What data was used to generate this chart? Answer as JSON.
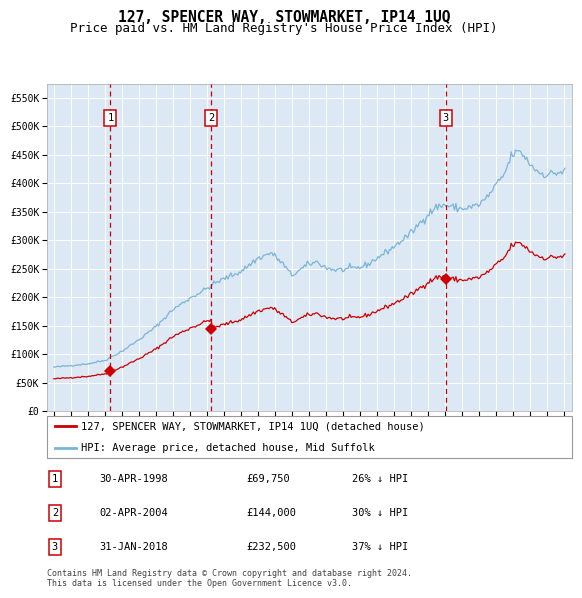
{
  "title": "127, SPENCER WAY, STOWMARKET, IP14 1UQ",
  "subtitle": "Price paid vs. HM Land Registry's House Price Index (HPI)",
  "legend_property": "127, SPENCER WAY, STOWMARKET, IP14 1UQ (detached house)",
  "legend_hpi": "HPI: Average price, detached house, Mid Suffolk",
  "transactions": [
    {
      "num": 1,
      "date": "30-APR-1998",
      "price": 69750,
      "pct": "26%",
      "dir": "↓"
    },
    {
      "num": 2,
      "date": "02-APR-2004",
      "price": 144000,
      "pct": "30%",
      "dir": "↓"
    },
    {
      "num": 3,
      "date": "31-JAN-2018",
      "price": 232500,
      "pct": "37%",
      "dir": "↓"
    }
  ],
  "transaction_dates_decimal": [
    1998.33,
    2004.25,
    2018.08
  ],
  "transaction_prices": [
    69750,
    144000,
    232500
  ],
  "ylim": [
    0,
    575000
  ],
  "yticks": [
    0,
    50000,
    100000,
    150000,
    200000,
    250000,
    300000,
    350000,
    400000,
    450000,
    500000,
    550000
  ],
  "xlim_start": 1994.6,
  "xlim_end": 2025.5,
  "plot_bg": "#dce9f5",
  "grid_color": "#ffffff",
  "hpi_color": "#7ab4d8",
  "property_color": "#cc0000",
  "vline_color": "#cc0000",
  "marker_color": "#cc0000",
  "footer": "Contains HM Land Registry data © Crown copyright and database right 2024.\nThis data is licensed under the Open Government Licence v3.0.",
  "title_fontsize": 10.5,
  "subtitle_fontsize": 9,
  "tick_fontsize": 7,
  "legend_fontsize": 7.5,
  "table_fontsize": 7.5,
  "footer_fontsize": 6
}
